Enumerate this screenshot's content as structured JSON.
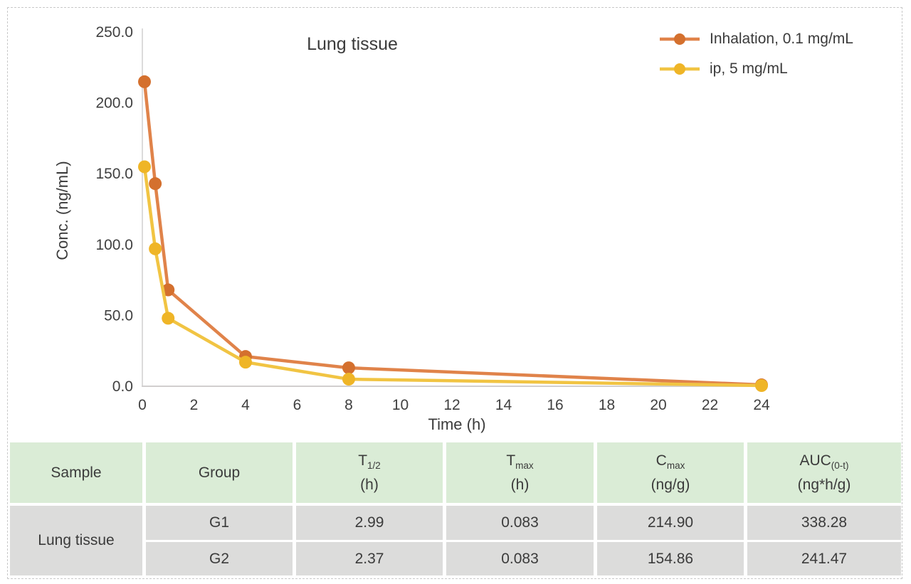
{
  "chart": {
    "title": "Lung tissue",
    "x_axis_label": "Time (h)",
    "y_axis_label": "Conc. (ng/mL)"
  },
  "chart_data": {
    "type": "line",
    "title": "Lung tissue",
    "xlabel": "Time (h)",
    "ylabel": "Conc. (ng/mL)",
    "xlim": [
      0,
      24
    ],
    "ylim": [
      0,
      250
    ],
    "grid": false,
    "legend_position": "top-right",
    "x_ticks": [
      0,
      2,
      4,
      6,
      8,
      10,
      12,
      14,
      16,
      18,
      20,
      22,
      24
    ],
    "y_ticks": [
      {
        "value": 0,
        "label": "0.0"
      },
      {
        "value": 50,
        "label": "50.0"
      },
      {
        "value": 100,
        "label": "100.0"
      },
      {
        "value": 150,
        "label": "150.0"
      },
      {
        "value": 200,
        "label": "200.0"
      },
      {
        "value": 250,
        "label": "250.0"
      }
    ],
    "x": [
      0.083,
      0.5,
      1,
      4,
      8,
      24
    ],
    "series": [
      {
        "name": "Inhalation, 0.1 mg/mL",
        "values": [
          214.9,
          143,
          68,
          21,
          13,
          1
        ],
        "line_color": "#E0834A",
        "marker_color": "#D4702E"
      },
      {
        "name": "ip, 5 mg/mL",
        "values": [
          154.9,
          97,
          48,
          17,
          5,
          0.5
        ],
        "line_color": "#F1C443",
        "marker_color": "#EFB527"
      }
    ]
  },
  "table": {
    "headers": [
      {
        "main": "Sample",
        "sub": "",
        "unit": ""
      },
      {
        "main": "Group",
        "sub": "",
        "unit": ""
      },
      {
        "main": "T",
        "sub": "1/2",
        "unit": "(h)"
      },
      {
        "main": "T",
        "sub": "max",
        "unit": "(h)"
      },
      {
        "main": "C",
        "sub": "max",
        "unit": "(ng/g)"
      },
      {
        "main": "AUC",
        "sub": "(0-t)",
        "unit": "(ng*h/g)"
      }
    ],
    "sample_label": "Lung tissue",
    "rows": [
      {
        "group": "G1",
        "t_half": "2.99",
        "t_max": "0.083",
        "c_max": "214.90",
        "auc": "338.28"
      },
      {
        "group": "G2",
        "t_half": "2.37",
        "t_max": "0.083",
        "c_max": "154.86",
        "auc": "241.47"
      }
    ]
  },
  "colors": {
    "header_green": "#DAECD6",
    "row_gray": "#DCDCDB",
    "axis_gray": "#D1CFCF",
    "text_dark": "#3B3B3B",
    "frame_dash": "#C8C8C8"
  }
}
